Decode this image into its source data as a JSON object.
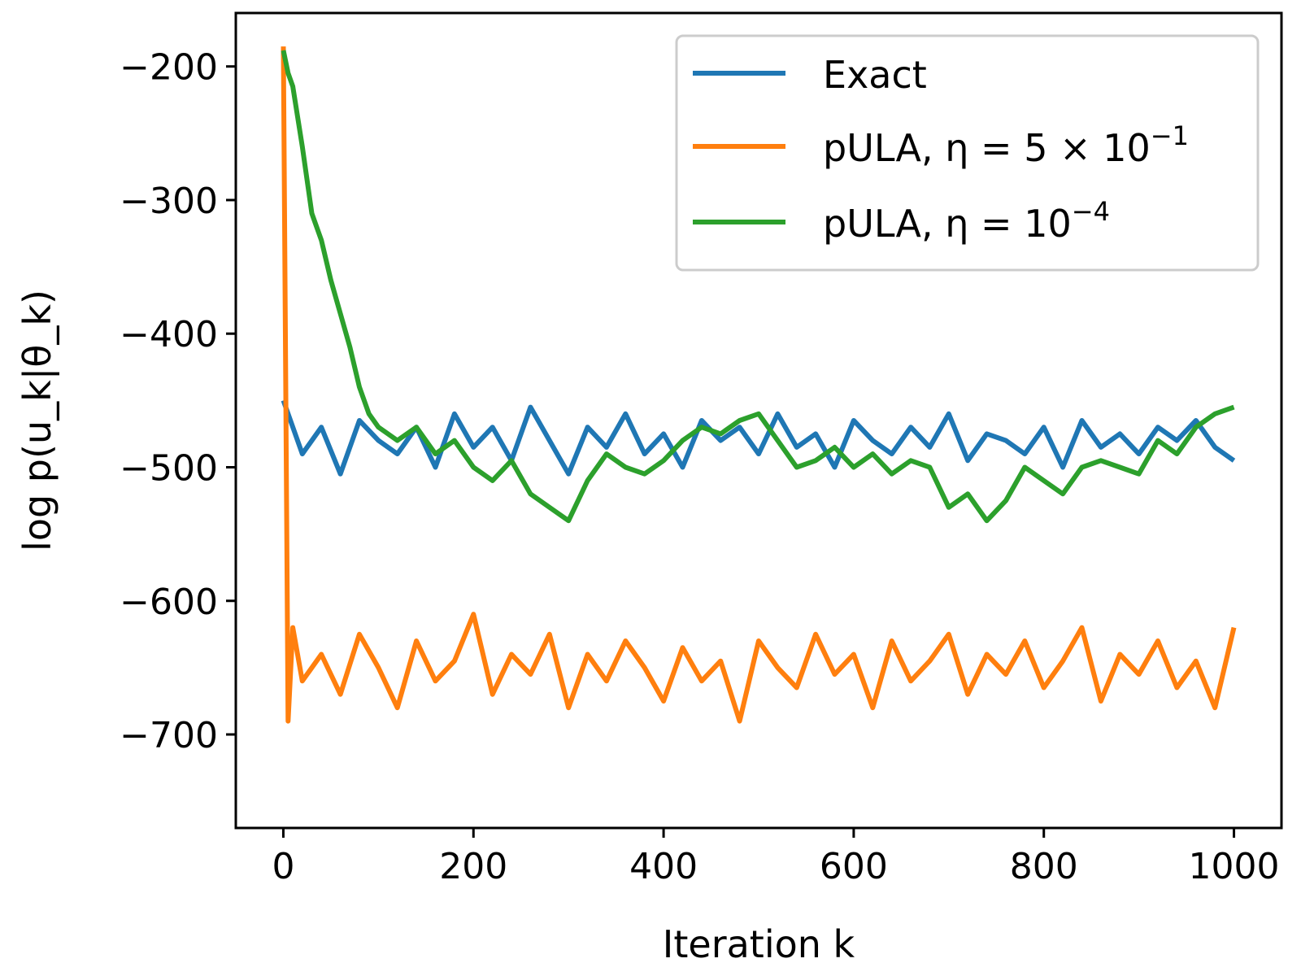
{
  "chart_data": {
    "type": "line",
    "xlabel": "Iteration k",
    "ylabel": "log p(u_k|θ_k)",
    "xlim": [
      -50,
      1050
    ],
    "ylim": [
      -770,
      -160
    ],
    "xticks": [
      0,
      200,
      400,
      600,
      800,
      1000
    ],
    "yticks": [
      -200,
      -300,
      -400,
      -500,
      -600,
      -700
    ],
    "xtick_labels": [
      "0",
      "200",
      "400",
      "600",
      "800",
      "1000"
    ],
    "ytick_labels": [
      "−200",
      "−300",
      "−400",
      "−500",
      "−600",
      "−700"
    ],
    "grid": false,
    "legend_position": "top-right",
    "series": [
      {
        "name": "Exact",
        "legend_text": "Exact",
        "color": "#1f77b4",
        "x": [
          0,
          20,
          40,
          60,
          80,
          100,
          120,
          140,
          160,
          180,
          200,
          220,
          240,
          260,
          280,
          300,
          320,
          340,
          360,
          380,
          400,
          420,
          440,
          460,
          480,
          500,
          520,
          540,
          560,
          580,
          600,
          620,
          640,
          660,
          680,
          700,
          720,
          740,
          760,
          780,
          800,
          820,
          840,
          860,
          880,
          900,
          920,
          940,
          960,
          980,
          1000
        ],
        "y": [
          -450,
          -490,
          -470,
          -505,
          -465,
          -480,
          -490,
          -470,
          -500,
          -460,
          -485,
          -470,
          -495,
          -455,
          -480,
          -505,
          -470,
          -485,
          -460,
          -490,
          -475,
          -500,
          -465,
          -480,
          -470,
          -490,
          -460,
          -485,
          -475,
          -500,
          -465,
          -480,
          -490,
          -470,
          -485,
          -460,
          -495,
          -475,
          -480,
          -490,
          -470,
          -500,
          -465,
          -485,
          -475,
          -490,
          -470,
          -480,
          -465,
          -485,
          -495
        ]
      },
      {
        "name": "pULA, η = 5 × 10⁻¹",
        "legend_text": "pULA, η = 5 × 10",
        "legend_sup": "−1",
        "color": "#ff7f0e",
        "x": [
          0,
          5,
          10,
          20,
          40,
          60,
          80,
          100,
          120,
          140,
          160,
          180,
          200,
          220,
          240,
          260,
          280,
          300,
          320,
          340,
          360,
          380,
          400,
          420,
          440,
          460,
          480,
          500,
          520,
          540,
          560,
          580,
          600,
          620,
          640,
          660,
          680,
          700,
          720,
          740,
          760,
          780,
          800,
          820,
          840,
          860,
          880,
          900,
          920,
          940,
          960,
          980,
          1000
        ],
        "y": [
          -185,
          -690,
          -620,
          -660,
          -640,
          -670,
          -625,
          -650,
          -680,
          -630,
          -660,
          -645,
          -610,
          -670,
          -640,
          -655,
          -625,
          -680,
          -640,
          -660,
          -630,
          -650,
          -675,
          -635,
          -660,
          -645,
          -690,
          -630,
          -650,
          -665,
          -625,
          -655,
          -640,
          -680,
          -630,
          -660,
          -645,
          -625,
          -670,
          -640,
          -655,
          -630,
          -665,
          -645,
          -620,
          -675,
          -640,
          -655,
          -630,
          -665,
          -645,
          -680,
          -620
        ]
      },
      {
        "name": "pULA, η = 10⁻⁴",
        "legend_text": "pULA, η = 10",
        "legend_sup": "−4",
        "color": "#2ca02c",
        "x": [
          0,
          5,
          10,
          20,
          30,
          40,
          50,
          60,
          70,
          80,
          90,
          100,
          120,
          140,
          160,
          180,
          200,
          220,
          240,
          260,
          280,
          300,
          320,
          340,
          360,
          380,
          400,
          420,
          440,
          460,
          480,
          500,
          520,
          540,
          560,
          580,
          600,
          620,
          640,
          660,
          680,
          700,
          720,
          740,
          760,
          780,
          800,
          820,
          840,
          860,
          880,
          900,
          920,
          940,
          960,
          980,
          1000
        ],
        "y": [
          -188,
          -205,
          -215,
          -260,
          -310,
          -330,
          -360,
          -385,
          -410,
          -440,
          -460,
          -470,
          -480,
          -470,
          -490,
          -480,
          -500,
          -510,
          -495,
          -520,
          -530,
          -540,
          -510,
          -490,
          -500,
          -505,
          -495,
          -480,
          -470,
          -475,
          -465,
          -460,
          -480,
          -500,
          -495,
          -485,
          -500,
          -490,
          -505,
          -495,
          -500,
          -530,
          -520,
          -540,
          -525,
          -500,
          -510,
          -520,
          -500,
          -495,
          -500,
          -505,
          -480,
          -490,
          -470,
          -460,
          -455
        ]
      }
    ]
  }
}
